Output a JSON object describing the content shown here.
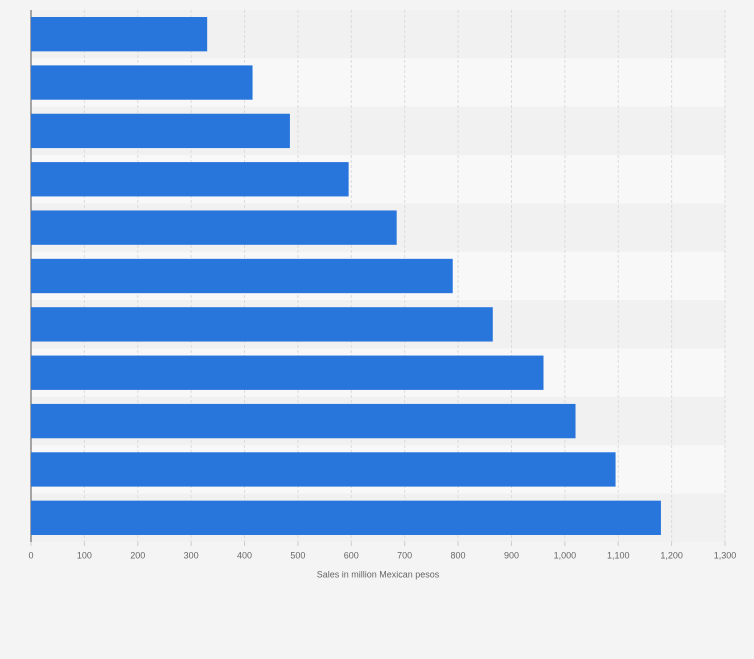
{
  "chart_data": {
    "type": "bar",
    "orientation": "horizontal",
    "categories": [
      null,
      null,
      null,
      null,
      null,
      null,
      null,
      null,
      null,
      null,
      null
    ],
    "values": [
      330,
      415,
      485,
      595,
      685,
      790,
      865,
      960,
      1020,
      1095,
      1180
    ],
    "color": "#2875dc",
    "xlabel": "Sales in million Mexican pesos",
    "xlim": [
      0,
      1300
    ],
    "xticks": [
      0,
      100,
      200,
      300,
      400,
      500,
      600,
      700,
      800,
      900,
      {
        "value": 1000,
        "label": "1,000"
      },
      {
        "value": 1100,
        "label": "1,100"
      },
      {
        "value": 1200,
        "label": "1,200"
      },
      {
        "value": 1300,
        "label": "1,300"
      }
    ],
    "grid": true
  }
}
